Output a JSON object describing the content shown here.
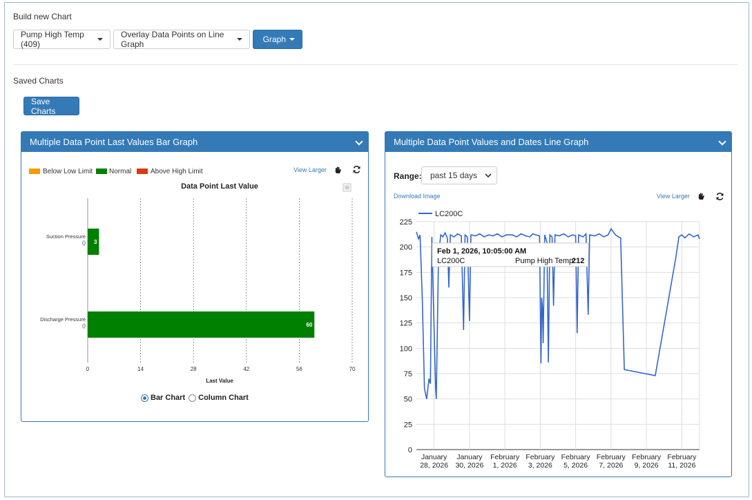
{
  "build": {
    "title": "Build new Chart",
    "point_select": "Pump High Temp (409)",
    "mode_select": "Overlay Data Points on Line Graph",
    "graph_button": "Graph"
  },
  "saved": {
    "title": "Saved Charts",
    "save_button": "Save Charts"
  },
  "bar_panel": {
    "header": "Multiple Data Point Last Values Bar Graph",
    "legend": [
      {
        "label": "Below Low Limit",
        "color": "#ff9900"
      },
      {
        "label": "Normal",
        "color": "#008000"
      },
      {
        "label": "Above High Limit",
        "color": "#dc3912"
      }
    ],
    "view_larger": "View Larger",
    "radio_bar": "Bar Chart",
    "radio_column": "Column Chart",
    "selected": "Bar Chart"
  },
  "line_panel": {
    "header": "Multiple Data Point Values and Dates Line Graph",
    "range_label": "Range:",
    "range_value": "past 15 days",
    "download": "Download Image",
    "view_larger": "View Larger",
    "series_name": "LC200C",
    "tooltip": {
      "date": "Feb 1, 2026, 10:05:00 AM",
      "series": "LC200C",
      "field": "Pump High Temp:",
      "value": "212"
    }
  },
  "chart_data": [
    {
      "type": "bar",
      "title": "Data Point Last Value",
      "xlabel": "Last Value",
      "categories": [
        "Suction Pressure\n()",
        "Discharge Pressure\n()"
      ],
      "category_lines": [
        [
          "Suction Pressure",
          "()"
        ],
        [
          "Discharge Pressure",
          "()"
        ]
      ],
      "values": [
        3,
        60
      ],
      "data_labels": [
        "3",
        "60"
      ],
      "xlim": [
        0,
        70
      ],
      "xticks": [
        0,
        14,
        28,
        42,
        56,
        70
      ],
      "color": "#008000",
      "grid": true
    },
    {
      "type": "line",
      "series": [
        {
          "name": "LC200C",
          "color": "#3366cc"
        }
      ],
      "ylim": [
        0,
        225
      ],
      "yticks": [
        0,
        25,
        50,
        75,
        100,
        125,
        150,
        175,
        200,
        225
      ],
      "xlim": [
        "2026-01-27",
        "2026-02-12"
      ],
      "xticks": [
        {
          "date": "2026-01-28",
          "label": [
            "January",
            "28, 2026"
          ]
        },
        {
          "date": "2026-01-30",
          "label": [
            "January",
            "30, 2026"
          ]
        },
        {
          "date": "2026-02-01",
          "label": [
            "February",
            "1, 2026"
          ]
        },
        {
          "date": "2026-02-03",
          "label": [
            "February",
            "3, 2026"
          ]
        },
        {
          "date": "2026-02-05",
          "label": [
            "February",
            "5, 2026"
          ]
        },
        {
          "date": "2026-02-07",
          "label": [
            "February",
            "7, 2026"
          ]
        },
        {
          "date": "2026-02-09",
          "label": [
            "February",
            "9, 2026"
          ]
        },
        {
          "date": "2026-02-11",
          "label": [
            "February",
            "11, 2026"
          ]
        }
      ],
      "points": [
        [
          "2026-01-27T00:00",
          215
        ],
        [
          "2026-01-27T03:00",
          208
        ],
        [
          "2026-01-27T05:00",
          212
        ],
        [
          "2026-01-27T08:00",
          150
        ],
        [
          "2026-01-27T11:00",
          60
        ],
        [
          "2026-01-27T14:00",
          50
        ],
        [
          "2026-01-27T17:00",
          70
        ],
        [
          "2026-01-27T19:00",
          65
        ],
        [
          "2026-01-27T21:00",
          210
        ],
        [
          "2026-01-28T00:00",
          120
        ],
        [
          "2026-01-28T02:00",
          60
        ],
        [
          "2026-01-28T03:00",
          50
        ],
        [
          "2026-01-28T06:00",
          190
        ],
        [
          "2026-01-28T09:00",
          212
        ],
        [
          "2026-01-28T12:00",
          210
        ],
        [
          "2026-01-28T15:00",
          214
        ],
        [
          "2026-01-28T18:00",
          209
        ],
        [
          "2026-01-28T20:00",
          160
        ],
        [
          "2026-01-28T22:00",
          212
        ],
        [
          "2026-01-29T03:00",
          210
        ],
        [
          "2026-01-29T08:00",
          213
        ],
        [
          "2026-01-29T13:00",
          211
        ],
        [
          "2026-01-29T16:00",
          118
        ],
        [
          "2026-01-29T18:00",
          212
        ],
        [
          "2026-01-29T21:00",
          210
        ],
        [
          "2026-01-30T00:00",
          127
        ],
        [
          "2026-01-30T02:00",
          212
        ],
        [
          "2026-01-30T08:00",
          211
        ],
        [
          "2026-01-30T14:00",
          213
        ],
        [
          "2026-01-30T20:00",
          210
        ],
        [
          "2026-01-31T02:00",
          212
        ],
        [
          "2026-01-31T08:00",
          211
        ],
        [
          "2026-01-31T14:00",
          213
        ],
        [
          "2026-01-31T20:00",
          210
        ],
        [
          "2026-02-01T02:00",
          212
        ],
        [
          "2026-02-01T10:05",
          212
        ],
        [
          "2026-02-01T16:00",
          210
        ],
        [
          "2026-02-01T22:00",
          213
        ],
        [
          "2026-02-02T04:00",
          211
        ],
        [
          "2026-02-02T10:00",
          210
        ],
        [
          "2026-02-02T14:00",
          213
        ],
        [
          "2026-02-02T18:00",
          212
        ],
        [
          "2026-02-02T23:00",
          211
        ],
        [
          "2026-02-03T01:00",
          85
        ],
        [
          "2026-02-03T02:00",
          150
        ],
        [
          "2026-02-03T03:00",
          140
        ],
        [
          "2026-02-03T04:00",
          105
        ],
        [
          "2026-02-03T06:00",
          212
        ],
        [
          "2026-02-03T09:00",
          205
        ],
        [
          "2026-02-03T11:00",
          86
        ],
        [
          "2026-02-03T13:00",
          212
        ],
        [
          "2026-02-03T16:00",
          210
        ],
        [
          "2026-02-03T18:00",
          142
        ],
        [
          "2026-02-03T20:00",
          212
        ],
        [
          "2026-02-04T02:00",
          211
        ],
        [
          "2026-02-04T08:00",
          213
        ],
        [
          "2026-02-04T14:00",
          210
        ],
        [
          "2026-02-04T20:00",
          212
        ],
        [
          "2026-02-05T00:00",
          211
        ],
        [
          "2026-02-05T02:00",
          115
        ],
        [
          "2026-02-05T04:00",
          212
        ],
        [
          "2026-02-05T10:00",
          210
        ],
        [
          "2026-02-05T14:00",
          213
        ],
        [
          "2026-02-05T17:00",
          133
        ],
        [
          "2026-02-05T19:00",
          212
        ],
        [
          "2026-02-06T02:00",
          211
        ],
        [
          "2026-02-06T08:00",
          213
        ],
        [
          "2026-02-06T14:00",
          210
        ],
        [
          "2026-02-06T20:00",
          212
        ],
        [
          "2026-02-07T00:00",
          218
        ],
        [
          "2026-02-07T06:00",
          212
        ],
        [
          "2026-02-07T10:00",
          210
        ],
        [
          "2026-02-07T13:00",
          209
        ],
        [
          "2026-02-07T18:00",
          79
        ],
        [
          "2026-02-09T12:00",
          73
        ],
        [
          "2026-02-10T16:00",
          190
        ],
        [
          "2026-02-10T20:00",
          210
        ],
        [
          "2026-02-11T00:00",
          212
        ],
        [
          "2026-02-11T04:00",
          209
        ],
        [
          "2026-02-11T10:00",
          213
        ],
        [
          "2026-02-11T16:00",
          210
        ],
        [
          "2026-02-11T22:00",
          212
        ],
        [
          "2026-02-12T00:00",
          208
        ]
      ],
      "grid": true,
      "legend": "top-left"
    }
  ]
}
